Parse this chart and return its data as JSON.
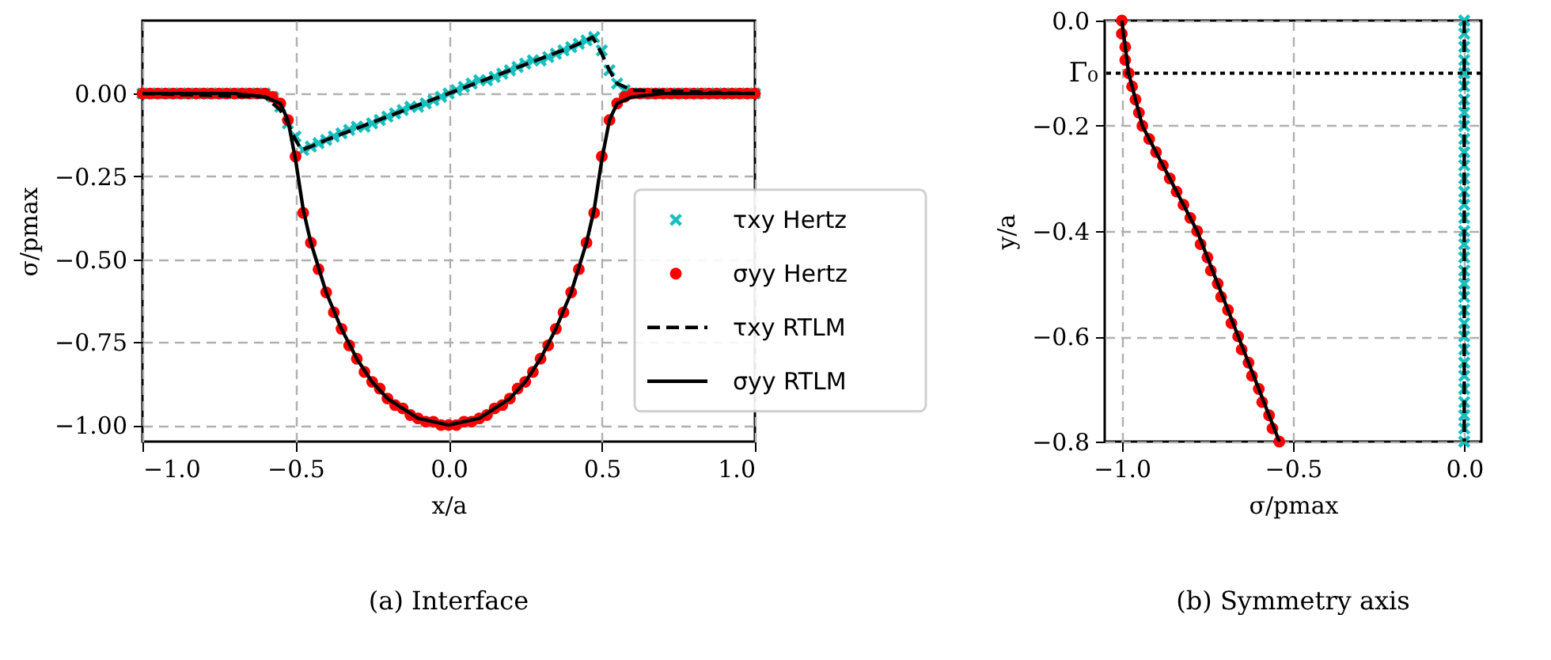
{
  "chart_data": [
    {
      "type": "line",
      "xlabel": "x/a",
      "ylabel": "σ/pmax",
      "annotations": [
        "(a) Interface"
      ],
      "xlim": [
        -1.0,
        1.0
      ],
      "xticks": [
        {
          "value": -1.0,
          "label": "−1.0"
        },
        {
          "value": -0.5,
          "label": "−0.5"
        },
        {
          "value": 0,
          "label": "0.0"
        },
        {
          "value": 0.5,
          "label": "0.5"
        },
        {
          "value": 1.0,
          "label": "1.0"
        }
      ],
      "ylim": [
        -1.05,
        0.22
      ],
      "yticks": [
        {
          "value": -1.0,
          "label": "−1.00"
        },
        {
          "value": -0.75,
          "label": "−0.75"
        },
        {
          "value": -0.5,
          "label": "−0.50"
        },
        {
          "value": -0.25,
          "label": "−0.25"
        },
        {
          "value": 0,
          "label": "0.00"
        }
      ],
      "grid": true,
      "legend": "right",
      "series": [
        {
          "name": "τxy Hertz",
          "type": "scatter",
          "marker": "cross",
          "color": "#17bfbf",
          "x": [
            -1,
            -0.975,
            -0.95,
            -0.925,
            -0.9,
            -0.875,
            -0.85,
            -0.825,
            -0.8,
            -0.775,
            -0.75,
            -0.725,
            -0.7,
            -0.675,
            -0.65,
            -0.625,
            -0.6,
            -0.575,
            -0.55,
            -0.525,
            -0.5,
            -0.475,
            -0.45,
            -0.425,
            -0.4,
            -0.375,
            -0.35,
            -0.325,
            -0.3,
            -0.275,
            -0.25,
            -0.225,
            -0.2,
            -0.175,
            -0.15,
            -0.125,
            -0.1,
            -0.075,
            -0.05,
            -0.025,
            0,
            0.025,
            0.05,
            0.075,
            0.1,
            0.125,
            0.15,
            0.175,
            0.2,
            0.225,
            0.25,
            0.275,
            0.3,
            0.325,
            0.35,
            0.375,
            0.4,
            0.425,
            0.45,
            0.475,
            0.5,
            0.525,
            0.55,
            0.575,
            0.6,
            0.625,
            0.65,
            0.675,
            0.7,
            0.725,
            0.75,
            0.775,
            0.8,
            0.825,
            0.85,
            0.875,
            0.9,
            0.925,
            0.95,
            0.975,
            1
          ],
          "values": [
            0,
            0,
            0,
            0,
            0,
            0,
            0,
            0,
            0,
            0,
            0,
            0,
            0,
            0,
            0,
            0,
            0,
            -0.01,
            -0.04,
            -0.09,
            -0.13,
            -0.17,
            -0.16,
            -0.15,
            -0.14,
            -0.13,
            -0.12,
            -0.11,
            -0.1,
            -0.1,
            -0.09,
            -0.08,
            -0.07,
            -0.06,
            -0.05,
            -0.04,
            -0.04,
            -0.03,
            -0.02,
            -0.01,
            0,
            0.01,
            0.02,
            0.03,
            0.04,
            0.04,
            0.05,
            0.06,
            0.07,
            0.08,
            0.09,
            0.1,
            0.1,
            0.11,
            0.12,
            0.13,
            0.14,
            0.15,
            0.16,
            0.17,
            0.13,
            0.07,
            0.03,
            0.01,
            0,
            0,
            0,
            0,
            0,
            0,
            0,
            0,
            0,
            0,
            0,
            0,
            0,
            0,
            0,
            0,
            0
          ]
        },
        {
          "name": "σyy Hertz",
          "type": "scatter",
          "marker": "circle",
          "color": "#ff0000",
          "x": [
            -1,
            -0.975,
            -0.95,
            -0.925,
            -0.9,
            -0.875,
            -0.85,
            -0.825,
            -0.8,
            -0.775,
            -0.75,
            -0.725,
            -0.7,
            -0.675,
            -0.65,
            -0.625,
            -0.6,
            -0.575,
            -0.55,
            -0.525,
            -0.5,
            -0.475,
            -0.45,
            -0.425,
            -0.4,
            -0.375,
            -0.35,
            -0.325,
            -0.3,
            -0.275,
            -0.25,
            -0.225,
            -0.2,
            -0.175,
            -0.15,
            -0.125,
            -0.1,
            -0.075,
            -0.05,
            -0.025,
            0,
            0.025,
            0.05,
            0.075,
            0.1,
            0.125,
            0.15,
            0.175,
            0.2,
            0.225,
            0.25,
            0.275,
            0.3,
            0.325,
            0.35,
            0.375,
            0.4,
            0.425,
            0.45,
            0.475,
            0.5,
            0.525,
            0.55,
            0.575,
            0.6,
            0.625,
            0.65,
            0.675,
            0.7,
            0.725,
            0.75,
            0.775,
            0.8,
            0.825,
            0.85,
            0.875,
            0.9,
            0.925,
            0.95,
            0.975,
            1
          ],
          "values": [
            0,
            0,
            0,
            0,
            0,
            0,
            0,
            0,
            0,
            0,
            0,
            0,
            0,
            0,
            0,
            0,
            0,
            -0.01,
            -0.03,
            -0.08,
            -0.19,
            -0.36,
            -0.45,
            -0.53,
            -0.6,
            -0.66,
            -0.71,
            -0.76,
            -0.8,
            -0.84,
            -0.87,
            -0.89,
            -0.92,
            -0.94,
            -0.95,
            -0.97,
            -0.98,
            -0.99,
            -0.99,
            -1.0,
            -1.0,
            -1.0,
            -0.99,
            -0.99,
            -0.98,
            -0.97,
            -0.95,
            -0.94,
            -0.92,
            -0.89,
            -0.87,
            -0.84,
            -0.8,
            -0.76,
            -0.71,
            -0.66,
            -0.6,
            -0.53,
            -0.45,
            -0.36,
            -0.19,
            -0.08,
            -0.03,
            -0.01,
            0,
            0,
            0,
            0,
            0,
            0,
            0,
            0,
            0,
            0,
            0,
            0,
            0,
            0,
            0,
            0,
            0
          ]
        },
        {
          "name": "τxy RTLM",
          "line_style": "dashed",
          "color": "#000000",
          "x": [
            -1,
            -0.6,
            -0.55,
            -0.525,
            -0.5,
            -0.48,
            -0.45,
            -0.4,
            -0.2,
            0,
            0.2,
            0.4,
            0.45,
            0.47,
            0.5,
            0.525,
            0.55,
            0.6,
            1
          ],
          "values": [
            0,
            -0.01,
            -0.05,
            -0.09,
            -0.14,
            -0.17,
            -0.16,
            -0.14,
            -0.07,
            0,
            0.07,
            0.14,
            0.16,
            0.17,
            0.12,
            0.07,
            0.03,
            0.01,
            0
          ]
        },
        {
          "name": "σyy RTLM",
          "line_style": "solid",
          "color": "#000000",
          "x": [
            -1,
            -0.7,
            -0.6,
            -0.55,
            -0.525,
            -0.5,
            -0.475,
            -0.45,
            -0.4,
            -0.35,
            -0.3,
            -0.25,
            -0.2,
            -0.15,
            -0.1,
            -0.05,
            0,
            0.05,
            0.1,
            0.15,
            0.2,
            0.25,
            0.3,
            0.35,
            0.4,
            0.45,
            0.475,
            0.5,
            0.525,
            0.55,
            0.6,
            0.7,
            1
          ],
          "values": [
            0,
            0,
            -0.01,
            -0.03,
            -0.08,
            -0.2,
            -0.35,
            -0.45,
            -0.6,
            -0.71,
            -0.8,
            -0.87,
            -0.92,
            -0.95,
            -0.98,
            -0.99,
            -1.0,
            -0.99,
            -0.98,
            -0.95,
            -0.92,
            -0.87,
            -0.8,
            -0.71,
            -0.6,
            -0.45,
            -0.35,
            -0.2,
            -0.08,
            -0.03,
            -0.01,
            0,
            0
          ]
        }
      ]
    },
    {
      "type": "line",
      "xlabel": "σ/pmax",
      "ylabel": "y/a",
      "annotations": [
        "(b) Symmetry axis"
      ],
      "xlim": [
        -1.05,
        0.05
      ],
      "xticks": [
        {
          "value": -1.0,
          "label": "−1.0"
        },
        {
          "value": -0.5,
          "label": "−0.5"
        },
        {
          "value": 0,
          "label": "0.0"
        }
      ],
      "ylim": [
        -0.8,
        0
      ],
      "yticks": [
        {
          "value": -0.8,
          "label": "−0.8"
        },
        {
          "value": -0.6,
          "label": "−0.6"
        },
        {
          "value": -0.4,
          "label": "−0.4"
        },
        {
          "value": -0.2,
          "label": "−0.2"
        },
        {
          "value": 0,
          "label": "0.0"
        }
      ],
      "grid": true,
      "ref_lines": [
        {
          "axis": "y",
          "value": -0.1,
          "label": "Γ₀",
          "line_style": "dotted",
          "color": "#000000"
        }
      ],
      "series": [
        {
          "type": "scatter",
          "marker": "cross",
          "color": "#17bfbf",
          "x": [
            0,
            0,
            0,
            0,
            0,
            0,
            0,
            0,
            0,
            0,
            0,
            0,
            0,
            0,
            0,
            0,
            0,
            0,
            0,
            0,
            0,
            0,
            0,
            0,
            0,
            0,
            0,
            0,
            0,
            0,
            0,
            0,
            0
          ],
          "values": [
            0,
            -0.025,
            -0.05,
            -0.075,
            -0.1,
            -0.125,
            -0.15,
            -0.175,
            -0.2,
            -0.225,
            -0.25,
            -0.275,
            -0.3,
            -0.325,
            -0.35,
            -0.375,
            -0.4,
            -0.425,
            -0.45,
            -0.475,
            -0.5,
            -0.525,
            -0.55,
            -0.575,
            -0.6,
            -0.625,
            -0.65,
            -0.675,
            -0.7,
            -0.725,
            -0.75,
            -0.775,
            -0.8
          ]
        },
        {
          "type": "scatter",
          "marker": "circle",
          "color": "#ff0000",
          "x": [
            -1.0,
            -1.0,
            -0.99,
            -0.99,
            -0.98,
            -0.97,
            -0.96,
            -0.95,
            -0.94,
            -0.92,
            -0.9,
            -0.88,
            -0.86,
            -0.84,
            -0.82,
            -0.8,
            -0.78,
            -0.77,
            -0.75,
            -0.74,
            -0.72,
            -0.71,
            -0.69,
            -0.68,
            -0.66,
            -0.65,
            -0.63,
            -0.62,
            -0.6,
            -0.59,
            -0.57,
            -0.56,
            -0.54
          ],
          "values": [
            0,
            -0.025,
            -0.05,
            -0.075,
            -0.1,
            -0.125,
            -0.15,
            -0.175,
            -0.2,
            -0.225,
            -0.25,
            -0.275,
            -0.3,
            -0.325,
            -0.35,
            -0.375,
            -0.4,
            -0.425,
            -0.45,
            -0.475,
            -0.5,
            -0.525,
            -0.55,
            -0.575,
            -0.6,
            -0.625,
            -0.65,
            -0.675,
            -0.7,
            -0.725,
            -0.75,
            -0.775,
            -0.8
          ]
        },
        {
          "line_style": "dashed",
          "color": "#000000",
          "x": [
            0,
            0
          ],
          "values": [
            0,
            -0.8
          ]
        },
        {
          "line_style": "solid",
          "color": "#000000",
          "x": [
            -1.0,
            -0.98,
            -0.94,
            -0.86,
            -0.78,
            -0.72,
            -0.66,
            -0.6,
            -0.54
          ],
          "values": [
            0,
            -0.1,
            -0.2,
            -0.3,
            -0.4,
            -0.5,
            -0.6,
            -0.7,
            -0.8
          ]
        }
      ]
    }
  ]
}
